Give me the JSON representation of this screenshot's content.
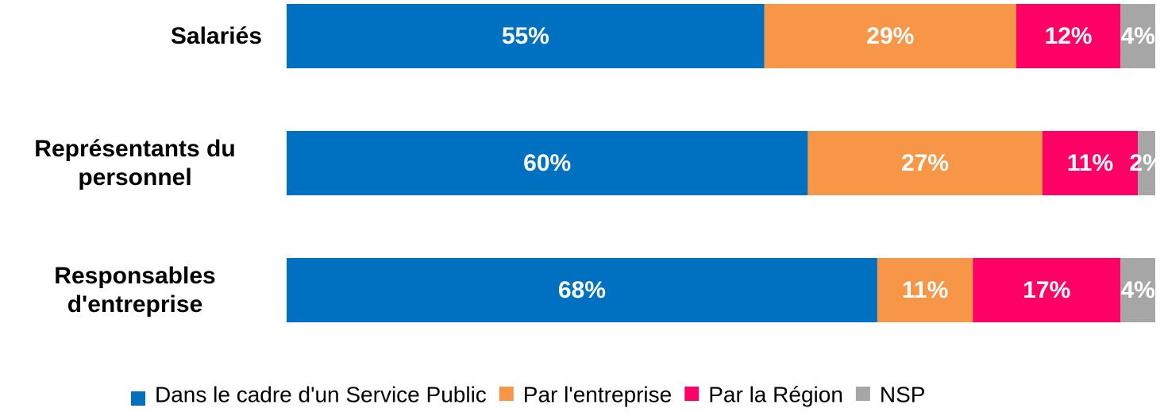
{
  "chart_data": {
    "type": "stacked_bar_horizontal",
    "categories": [
      "Salariés",
      "Représentants du personnel",
      "Responsables d'entreprise"
    ],
    "xlim": [
      0,
      100
    ],
    "series": [
      {
        "name": "Dans le cadre d'un Service Public",
        "color": "#0070c0",
        "values": [
          55,
          60,
          68
        ],
        "value_labels": [
          "55%",
          "60%",
          "68%"
        ]
      },
      {
        "name": "Par l'entreprise",
        "color": "#f79646",
        "values": [
          29,
          27,
          11
        ],
        "value_labels": [
          "29%",
          "27%",
          "11%"
        ]
      },
      {
        "name": "Par la Région",
        "color": "#ff0066",
        "values": [
          12,
          11,
          17
        ],
        "value_labels": [
          "12%",
          "11%",
          "17%"
        ]
      },
      {
        "name": "NSP",
        "color": "#a6a6a6",
        "values": [
          4,
          2,
          4
        ],
        "value_labels": [
          "4%",
          "2%",
          "4%"
        ]
      }
    ]
  }
}
